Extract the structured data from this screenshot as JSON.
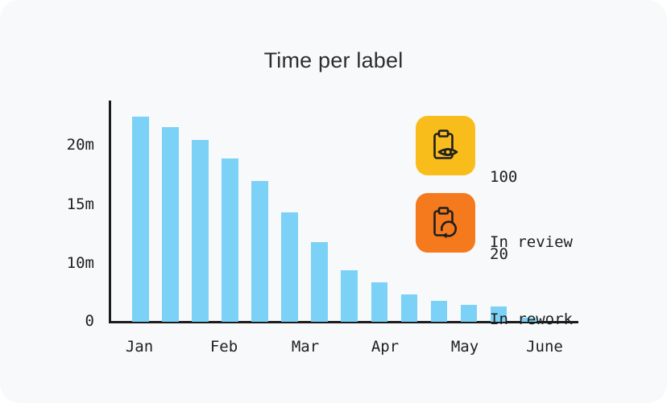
{
  "card": {
    "background": "#F8F9FA",
    "title": "Time per label"
  },
  "chart_data": {
    "type": "bar",
    "title": "Time per label",
    "unit": "minutes per label",
    "xlabel": "",
    "ylabel": "",
    "categories": [
      "Jan",
      "Feb",
      "Mar",
      "Apr",
      "May",
      "June"
    ],
    "values": [
      22.5,
      21.6,
      20.5,
      19.0,
      17.1,
      14.4,
      11.9,
      9.0,
      6.9,
      4.8,
      3.7,
      3.0,
      2.6,
      0.7
    ],
    "y_ticks": [
      {
        "label": "20m",
        "value": 20
      },
      {
        "label": "15m",
        "value": 15
      },
      {
        "label": "10m",
        "value": 10
      },
      {
        "label": "0",
        "value": 0
      }
    ],
    "ylim": [
      0,
      23
    ],
    "grid": false,
    "legend_position": "none",
    "bar_color": "#7CD1F7",
    "axis_color": "#1B1B1B",
    "note": "14 bars declining from Jan to June; month labels mark the timeline, not individual bars"
  },
  "stats": [
    {
      "value": "100",
      "label": "In review",
      "icon": "clipboard-eye-icon",
      "badge_color": "#F9BD1B"
    },
    {
      "value": "20",
      "label": "In rework",
      "icon": "clipboard-redo-icon",
      "badge_color": "#F5791D"
    }
  ],
  "colors": {
    "ink": "#1F1F1F",
    "title_text": "#2D2D2D",
    "card_background": "#F8F9FA",
    "page_background": "#FFFFFF"
  }
}
